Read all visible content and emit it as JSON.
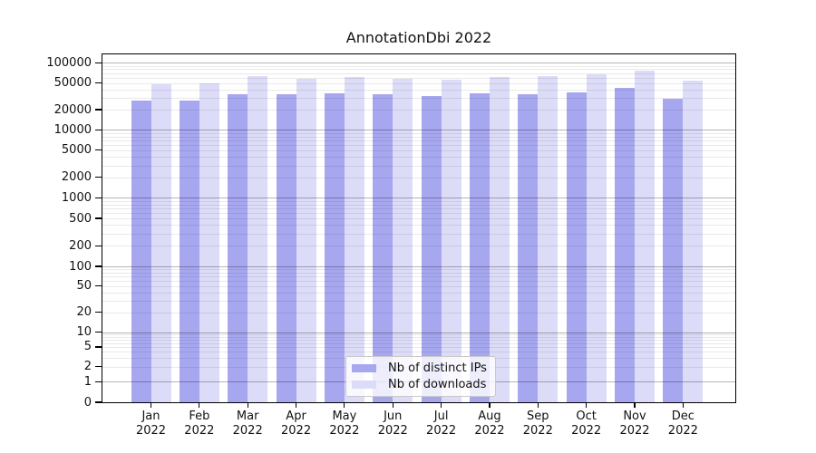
{
  "chart_data": {
    "type": "bar",
    "title": "AnnotationDbi 2022",
    "x_months": [
      "Jan",
      "Feb",
      "Mar",
      "Apr",
      "May",
      "Jun",
      "Jul",
      "Aug",
      "Sep",
      "Oct",
      "Nov",
      "Dec"
    ],
    "x_year": "2022",
    "series": [
      {
        "name": "Nb of distinct IPs",
        "color": "#a7a7f0",
        "values": [
          27500,
          27000,
          34000,
          34000,
          35000,
          34500,
          32000,
          35000,
          34000,
          36500,
          42000,
          29500
        ]
      },
      {
        "name": "Nb of downloads",
        "color": "#dcdcf8",
        "values": [
          47500,
          49000,
          62500,
          58000,
          61000,
          57000,
          55500,
          61000,
          62500,
          67000,
          77000,
          54000
        ]
      }
    ],
    "yscale": "symlog",
    "ylim": [
      0,
      100000
    ],
    "yticks": [
      0,
      1,
      2,
      5,
      10,
      20,
      50,
      100,
      200,
      500,
      1000,
      2000,
      5000,
      10000,
      20000,
      50000,
      100000
    ],
    "grid": "horizontal minor+major",
    "legend_position": "lower center"
  },
  "colors": {
    "bar_distinct_ips": "#a7a7f0",
    "bar_downloads": "#dcdcf8",
    "grid_major": "#b6b6b6",
    "grid_minor": "#e9e9e9",
    "axis": "#000000",
    "background": "#ffffff"
  }
}
